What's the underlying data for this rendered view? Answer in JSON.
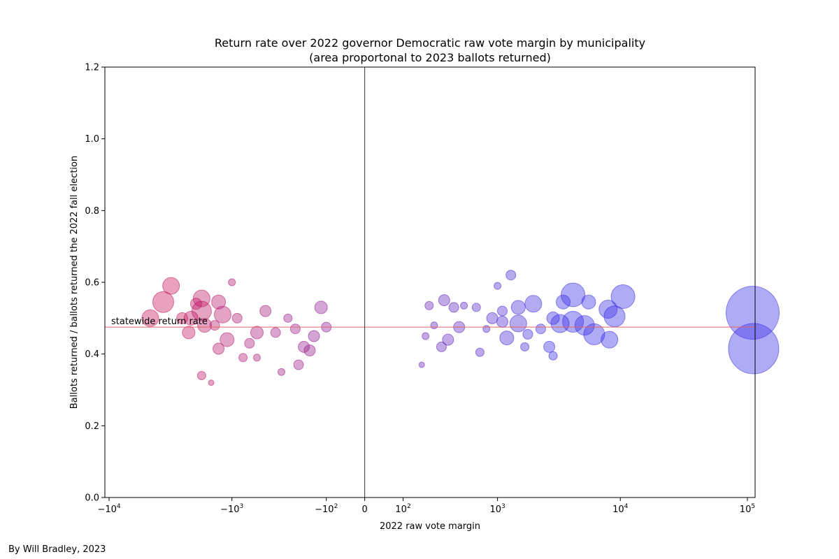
{
  "credit": "By Will Bradley, 2023",
  "chart_data": {
    "type": "scatter",
    "title_line1": "Return rate over 2022 governor Democratic raw vote margin by municipality",
    "title_line2": "(area proportonal to 2023 ballots returned)",
    "xlabel": "2022 raw vote margin",
    "ylabel": "Ballots returned / ballots returned the 2022 fall election",
    "x_scale": "symlog",
    "x_linthresh": 100,
    "xlim": [
      -10800,
      115000
    ],
    "ylim": [
      0,
      1.2
    ],
    "x_ticks": [
      {
        "value": -10000,
        "base": "−10",
        "exp": "4"
      },
      {
        "value": -1000,
        "base": "−10",
        "exp": "3"
      },
      {
        "value": -100,
        "base": "−10",
        "exp": "2"
      },
      {
        "value": 0,
        "base": "0",
        "exp": ""
      },
      {
        "value": 100,
        "base": "10",
        "exp": "2"
      },
      {
        "value": 1000,
        "base": "10",
        "exp": "3"
      },
      {
        "value": 10000,
        "base": "10",
        "exp": "4"
      },
      {
        "value": 100000,
        "base": "10",
        "exp": "5"
      }
    ],
    "y_ticks": [
      "0.0",
      "0.2",
      "0.4",
      "0.6",
      "0.8",
      "1.0",
      "1.2"
    ],
    "reference_line": {
      "y": 0.475,
      "label": "statewide return rate",
      "color": "#e06666"
    },
    "zero_line": {
      "x": 0,
      "color": "#333333"
    },
    "colors": {
      "republican": "#c8175d",
      "democratic": "#3a2ee6"
    },
    "size_unit": "relative bubble radius (area proportional to 2023 ballots returned)",
    "points": [
      {
        "x": 110000,
        "y": 0.515,
        "r": 38
      },
      {
        "x": 112000,
        "y": 0.415,
        "r": 36
      },
      {
        "x": 10500,
        "y": 0.56,
        "r": 17
      },
      {
        "x": 9000,
        "y": 0.505,
        "r": 15
      },
      {
        "x": 8000,
        "y": 0.525,
        "r": 13
      },
      {
        "x": 8200,
        "y": 0.44,
        "r": 12
      },
      {
        "x": 6200,
        "y": 0.455,
        "r": 15
      },
      {
        "x": 5200,
        "y": 0.48,
        "r": 14
      },
      {
        "x": 5600,
        "y": 0.545,
        "r": 10
      },
      {
        "x": 4200,
        "y": 0.565,
        "r": 17
      },
      {
        "x": 4200,
        "y": 0.49,
        "r": 15
      },
      {
        "x": 3300,
        "y": 0.485,
        "r": 13
      },
      {
        "x": 3500,
        "y": 0.545,
        "r": 10
      },
      {
        "x": 2900,
        "y": 0.5,
        "r": 9
      },
      {
        "x": 2700,
        "y": 0.42,
        "r": 8
      },
      {
        "x": 2900,
        "y": 0.395,
        "r": 6
      },
      {
        "x": 2300,
        "y": 0.47,
        "r": 7
      },
      {
        "x": 2000,
        "y": 0.54,
        "r": 12
      },
      {
        "x": 1800,
        "y": 0.455,
        "r": 7
      },
      {
        "x": 1700,
        "y": 0.42,
        "r": 6
      },
      {
        "x": 1500,
        "y": 0.485,
        "r": 12
      },
      {
        "x": 1500,
        "y": 0.53,
        "r": 10
      },
      {
        "x": 1300,
        "y": 0.62,
        "r": 7
      },
      {
        "x": 1200,
        "y": 0.445,
        "r": 10
      },
      {
        "x": 1100,
        "y": 0.49,
        "r": 8
      },
      {
        "x": 1100,
        "y": 0.52,
        "r": 7
      },
      {
        "x": 1000,
        "y": 0.59,
        "r": 5
      },
      {
        "x": 900,
        "y": 0.5,
        "r": 8
      },
      {
        "x": 800,
        "y": 0.47,
        "r": 5
      },
      {
        "x": 700,
        "y": 0.405,
        "r": 6
      },
      {
        "x": 650,
        "y": 0.53,
        "r": 6
      },
      {
        "x": 500,
        "y": 0.535,
        "r": 5
      },
      {
        "x": 450,
        "y": 0.475,
        "r": 8
      },
      {
        "x": 400,
        "y": 0.53,
        "r": 7
      },
      {
        "x": 350,
        "y": 0.44,
        "r": 8
      },
      {
        "x": 320,
        "y": 0.55,
        "r": 8
      },
      {
        "x": 300,
        "y": 0.42,
        "r": 7
      },
      {
        "x": 250,
        "y": 0.48,
        "r": 5
      },
      {
        "x": 220,
        "y": 0.535,
        "r": 6
      },
      {
        "x": 200,
        "y": 0.45,
        "r": 5
      },
      {
        "x": 180,
        "y": 0.37,
        "r": 4
      },
      {
        "x": -100,
        "y": 0.475,
        "r": 7
      },
      {
        "x": -150,
        "y": 0.45,
        "r": 8
      },
      {
        "x": -170,
        "y": 0.41,
        "r": 8
      },
      {
        "x": -120,
        "y": 0.53,
        "r": 9
      },
      {
        "x": -200,
        "y": 0.42,
        "r": 8
      },
      {
        "x": -250,
        "y": 0.47,
        "r": 7
      },
      {
        "x": -300,
        "y": 0.5,
        "r": 6
      },
      {
        "x": -230,
        "y": 0.37,
        "r": 7
      },
      {
        "x": -400,
        "y": 0.46,
        "r": 7
      },
      {
        "x": -500,
        "y": 0.52,
        "r": 8
      },
      {
        "x": -600,
        "y": 0.46,
        "r": 9
      },
      {
        "x": -700,
        "y": 0.43,
        "r": 7
      },
      {
        "x": -800,
        "y": 0.39,
        "r": 6
      },
      {
        "x": -900,
        "y": 0.5,
        "r": 7
      },
      {
        "x": -1100,
        "y": 0.44,
        "r": 10
      },
      {
        "x": -1200,
        "y": 0.51,
        "r": 12
      },
      {
        "x": -1300,
        "y": 0.545,
        "r": 10
      },
      {
        "x": -1400,
        "y": 0.48,
        "r": 7
      },
      {
        "x": -1300,
        "y": 0.415,
        "r": 8
      },
      {
        "x": -1700,
        "y": 0.48,
        "r": 10
      },
      {
        "x": -1800,
        "y": 0.52,
        "r": 14
      },
      {
        "x": -1800,
        "y": 0.555,
        "r": 12
      },
      {
        "x": -2000,
        "y": 0.54,
        "r": 8
      },
      {
        "x": -2200,
        "y": 0.5,
        "r": 10
      },
      {
        "x": -2300,
        "y": 0.46,
        "r": 9
      },
      {
        "x": -2600,
        "y": 0.5,
        "r": 8
      },
      {
        "x": -3200,
        "y": 0.59,
        "r": 12
      },
      {
        "x": -3700,
        "y": 0.545,
        "r": 15
      },
      {
        "x": -4700,
        "y": 0.5,
        "r": 12
      },
      {
        "x": -1800,
        "y": 0.34,
        "r": 6
      },
      {
        "x": -1500,
        "y": 0.32,
        "r": 4
      },
      {
        "x": -1000,
        "y": 0.6,
        "r": 5
      },
      {
        "x": -600,
        "y": 0.39,
        "r": 5
      },
      {
        "x": -350,
        "y": 0.35,
        "r": 5
      }
    ]
  }
}
